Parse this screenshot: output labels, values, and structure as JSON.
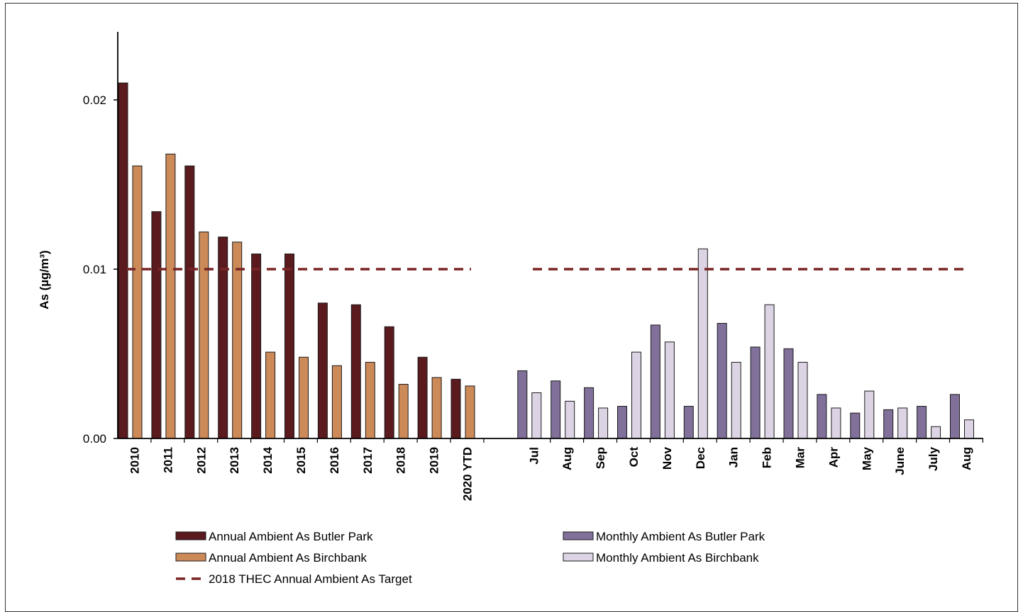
{
  "colors": {
    "annual_butler": "#5a1a1e",
    "annual_birchbank": "#cd8a59",
    "monthly_butler": "#80709a",
    "monthly_birchbank": "#dcd4e4",
    "target": "#7a2424",
    "bar_stroke": "#1a1a1a"
  },
  "chart_data": {
    "type": "bar",
    "ylabel": "As  (µg/m³)",
    "ylim": [
      0,
      0.024
    ],
    "yticks": [
      {
        "value": 0.0,
        "label": "0.00"
      },
      {
        "value": 0.01,
        "label": "0.01"
      },
      {
        "value": 0.02,
        "label": "0.02"
      }
    ],
    "target_value": 0.01,
    "annual": {
      "categories": [
        "2010",
        "2011",
        "2012",
        "2013",
        "2014",
        "2015",
        "2016",
        "2017",
        "2018",
        "2019",
        "2020 YTD"
      ],
      "series": [
        {
          "name": "Annual Ambient As Butler Park",
          "values": [
            0.021,
            0.0134,
            0.0161,
            0.0119,
            0.0109,
            0.0109,
            0.008,
            0.0079,
            0.0066,
            0.0048,
            0.0035
          ]
        },
        {
          "name": "Annual Ambient As Birchbank",
          "values": [
            0.0161,
            0.0168,
            0.0122,
            0.0116,
            0.0051,
            0.0048,
            0.0043,
            0.0045,
            0.0032,
            0.0036,
            0.0031
          ]
        }
      ]
    },
    "monthly": {
      "categories": [
        "Jul",
        "Aug",
        "Sep",
        "Oct",
        "Nov",
        "Dec",
        "Jan",
        "Feb",
        "Mar",
        "Apr",
        "May",
        "June",
        "July",
        "Aug"
      ],
      "series": [
        {
          "name": "Monthly Ambient As Butler Park",
          "values": [
            0.004,
            0.0034,
            0.003,
            0.0019,
            0.0067,
            0.0019,
            0.0068,
            0.0054,
            0.0053,
            0.0026,
            0.0015,
            0.0017,
            0.0019,
            0.0026
          ]
        },
        {
          "name": "Monthly Ambient As Birchbank",
          "values": [
            0.0027,
            0.0022,
            0.0018,
            0.0051,
            0.0057,
            0.0112,
            0.0045,
            0.0079,
            0.0045,
            0.0018,
            0.0028,
            0.0018,
            0.0007,
            0.0011
          ]
        }
      ]
    },
    "legend": [
      {
        "label": "Annual Ambient As Butler Park",
        "kind": "box",
        "color_key": "annual_butler"
      },
      {
        "label": "Monthly Ambient As Butler Park",
        "kind": "box",
        "color_key": "monthly_butler"
      },
      {
        "label": "Annual Ambient As Birchbank",
        "kind": "box",
        "color_key": "annual_birchbank"
      },
      {
        "label": "Monthly Ambient As Birchbank",
        "kind": "box",
        "color_key": "monthly_birchbank"
      },
      {
        "label": "2018 THEC Annual Ambient As Target",
        "kind": "dash",
        "color_key": "target"
      }
    ],
    "legend_position": "bottom",
    "grid": false
  }
}
